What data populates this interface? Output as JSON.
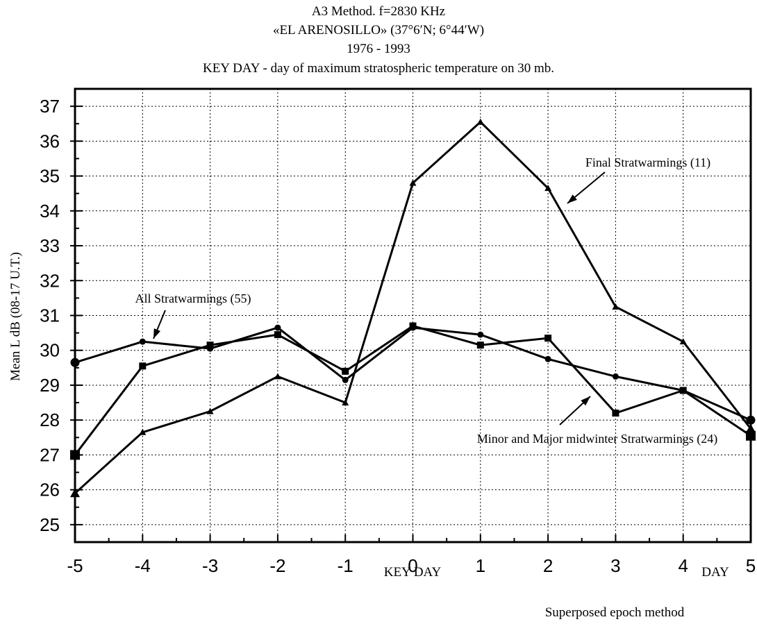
{
  "chart_data": {
    "type": "line",
    "title_lines": [
      "A3 Method. f=2830 KHz",
      "«EL ARENOSILLO» (37°6′N; 6°44′W)",
      "1976 - 1993",
      "KEY DAY - day of maximum stratospheric temperature on 30 mb."
    ],
    "ylabel": "Mean L dB (08-17 U.T.)",
    "xlabel": "KEY DAY",
    "xlabel_right": "DAY",
    "caption": "Superposed epoch method",
    "xlim": [
      -5,
      5
    ],
    "ylim": [
      24.5,
      37.5
    ],
    "x_ticks": [
      -5,
      -4,
      -3,
      -2,
      -1,
      0,
      1,
      2,
      3,
      4,
      5
    ],
    "x_tick_labels": [
      "-5",
      "-4",
      "-3",
      "-2",
      "-1",
      "0",
      "1",
      "2",
      "3",
      "4",
      "5"
    ],
    "y_ticks": [
      25,
      26,
      27,
      28,
      29,
      30,
      31,
      32,
      33,
      34,
      35,
      36,
      37
    ],
    "y_tick_labels": [
      "25",
      "26",
      "27",
      "28",
      "29",
      "30",
      "31",
      "32",
      "33",
      "34",
      "35",
      "36",
      "37"
    ],
    "grid": true,
    "x": [
      -5,
      -4,
      -3,
      -2,
      -1,
      0,
      1,
      2,
      3,
      4,
      5
    ],
    "series": [
      {
        "name": "All Stratwarmings (55)",
        "marker": "circle",
        "values": [
          29.65,
          30.25,
          30.05,
          30.65,
          29.15,
          30.65,
          30.45,
          29.75,
          29.25,
          28.85,
          28.0
        ]
      },
      {
        "name": "Minor and Major midwinter Stratwarmings (24)",
        "marker": "square",
        "values": [
          27.0,
          29.55,
          30.15,
          30.45,
          29.4,
          30.7,
          30.15,
          30.35,
          28.2,
          28.85,
          27.55
        ]
      },
      {
        "name": "Final Stratwarmings (11)",
        "marker": "triangle",
        "values": [
          25.9,
          27.65,
          28.25,
          29.25,
          28.5,
          34.8,
          36.55,
          34.65,
          31.25,
          30.25,
          27.75
        ]
      }
    ],
    "annotations": [
      "All Stratwarmings (55)",
      "Final Stratwarmings (11)",
      "Minor and Major midwinter Stratwarmings (24)"
    ]
  }
}
